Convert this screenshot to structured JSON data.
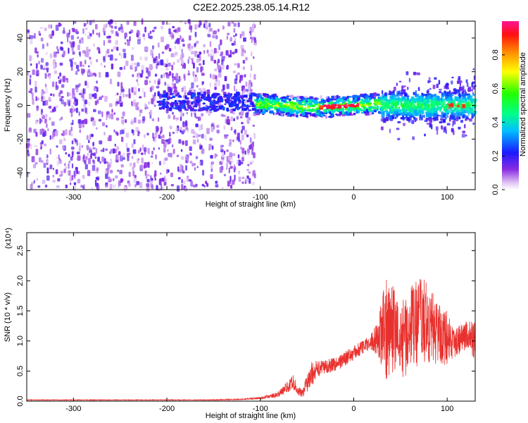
{
  "figure_title": "C2E2.2025.238.05.14.R12",
  "chart_data": [
    {
      "type": "heatmap",
      "title": "C2E2.2025.238.05.14.R12",
      "xlabel": "Height of straight line (km)",
      "ylabel": "Frequency (Hz)",
      "xlim": [
        -350,
        130
      ],
      "ylim": [
        -50,
        50
      ],
      "xticks": [
        "-300",
        "-200",
        "-100",
        "0",
        "100"
      ],
      "xtick_values": [
        -300,
        -200,
        -100,
        0,
        100
      ],
      "yticks": [
        "-40",
        "-20",
        "0",
        "20",
        "40"
      ],
      "ytick_values": [
        -40,
        -20,
        0,
        20,
        40
      ],
      "colorbar": {
        "label": "Normalized spectral amplitude",
        "range": [
          0.0,
          1.0
        ],
        "ticks": [
          "0.0",
          "0.2",
          "0.4",
          "0.6",
          "0.8"
        ],
        "tick_values": [
          0.0,
          0.2,
          0.4,
          0.6,
          0.8
        ]
      },
      "description_regions": [
        {
          "x": [
            -350,
            -105
          ],
          "y": [
            -50,
            50
          ],
          "level": 0.15
        },
        {
          "x": [
            -105,
            30
          ],
          "y": [
            -5,
            7
          ],
          "level": 0.5
        },
        {
          "x": [
            30,
            130
          ],
          "y": [
            -20,
            25
          ],
          "level": 0.3
        }
      ]
    },
    {
      "type": "line",
      "xlabel": "Height of straight line (km)",
      "ylabel": "SNR (10 * v/v)",
      "y_multiplier": "(x10⁴)",
      "xlim": [
        -350,
        130
      ],
      "ylim": [
        0.0,
        2.8
      ],
      "xticks": [
        "-300",
        "-200",
        "-100",
        "0",
        "100"
      ],
      "xtick_values": [
        -300,
        -200,
        -100,
        0,
        100
      ],
      "yticks": [
        "0.0",
        "0.5",
        "1.0",
        "1.5",
        "2.0",
        "2.5"
      ],
      "ytick_values": [
        0.0,
        0.5,
        1.0,
        1.5,
        2.0,
        2.5
      ],
      "color": "#e8312e",
      "series": [
        {
          "name": "SNR",
          "x": [
            -350,
            -300,
            -250,
            -200,
            -150,
            -120,
            -100,
            -90,
            -80,
            -70,
            -65,
            -60,
            -55,
            -50,
            -45,
            -40,
            -35,
            -30,
            -25,
            -20,
            -15,
            -10,
            -5,
            0,
            5,
            10,
            15,
            20,
            25,
            30,
            35,
            40,
            45,
            50,
            55,
            60,
            65,
            70,
            75,
            80,
            85,
            90,
            95,
            100,
            105,
            110,
            115,
            120,
            125,
            130
          ],
          "y": [
            0.02,
            0.02,
            0.02,
            0.02,
            0.02,
            0.03,
            0.05,
            0.08,
            0.12,
            0.25,
            0.32,
            0.18,
            0.12,
            0.3,
            0.45,
            0.52,
            0.55,
            0.58,
            0.6,
            0.62,
            0.65,
            0.7,
            0.75,
            0.8,
            0.85,
            0.9,
            0.95,
            1.0,
            1.05,
            1.1,
            1.2,
            1.3,
            1.1,
            1.0,
            1.1,
            1.2,
            1.25,
            1.3,
            1.35,
            1.25,
            1.2,
            1.15,
            1.1,
            1.05,
            1.0,
            1.0,
            1.05,
            1.1,
            1.05,
            1.0
          ],
          "spread": [
            0.005,
            0.005,
            0.005,
            0.005,
            0.006,
            0.01,
            0.02,
            0.03,
            0.05,
            0.1,
            0.12,
            0.08,
            0.06,
            0.15,
            0.2,
            0.15,
            0.12,
            0.12,
            0.12,
            0.12,
            0.12,
            0.12,
            0.12,
            0.12,
            0.12,
            0.12,
            0.12,
            0.15,
            0.3,
            0.6,
            0.9,
            0.8,
            0.7,
            0.6,
            0.7,
            0.7,
            0.75,
            0.75,
            0.7,
            0.65,
            0.6,
            0.55,
            0.5,
            0.45,
            0.3,
            0.25,
            0.25,
            0.25,
            0.3,
            0.3
          ]
        }
      ]
    }
  ]
}
